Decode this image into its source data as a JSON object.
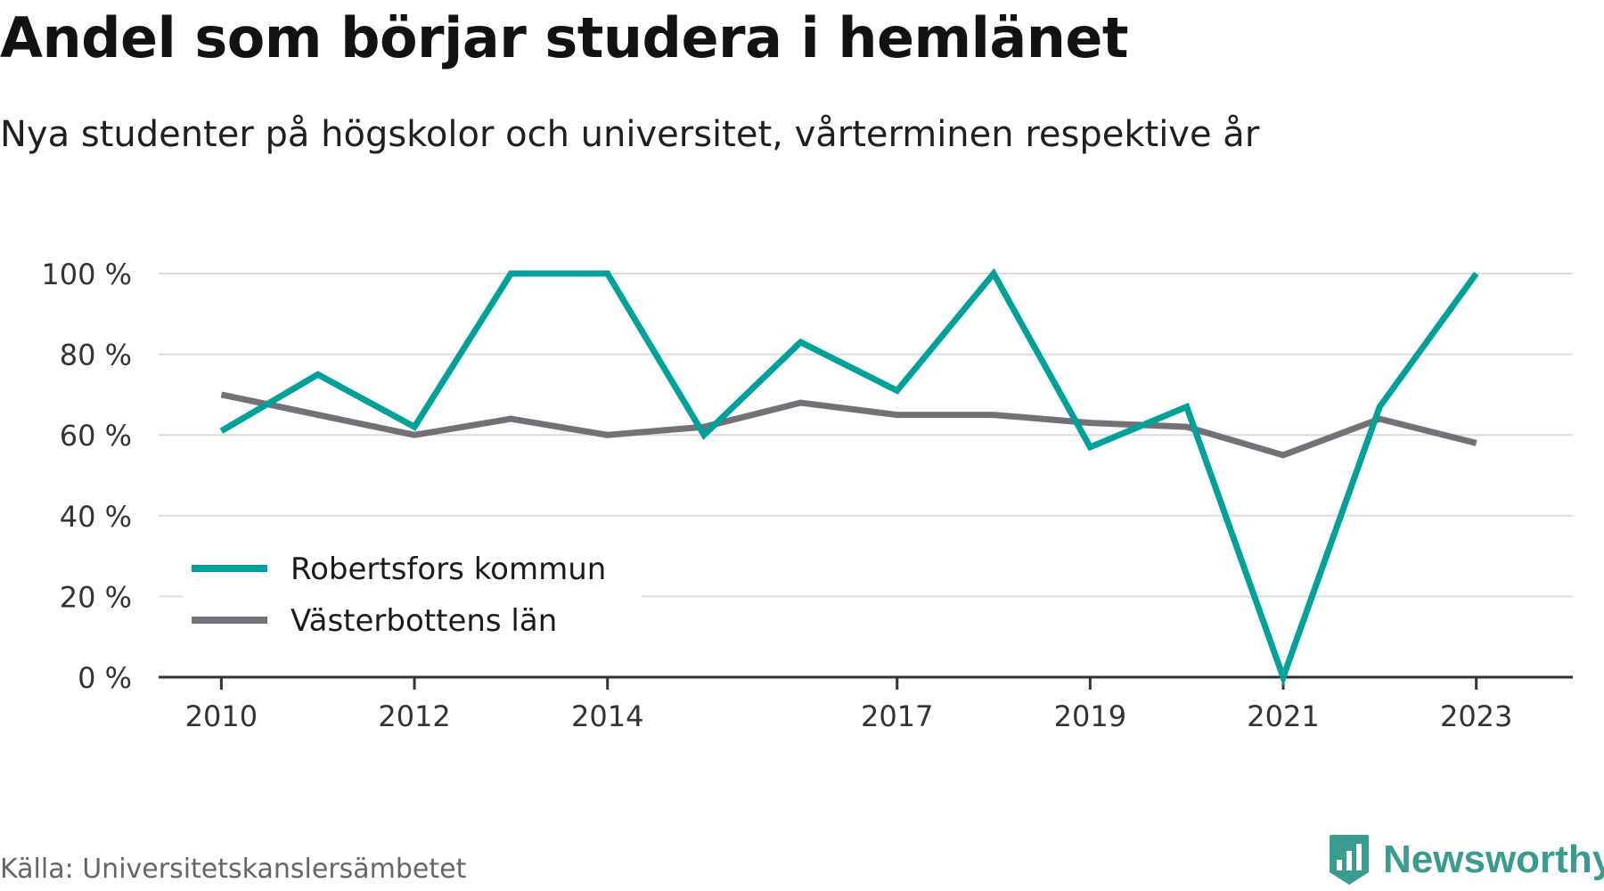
{
  "title": "Andel som börjar studera i hemlänet",
  "subtitle": "Nya studenter på högskolor och universitet, vårterminen respektive år",
  "source": "Källa: Universitetskanslersämbetet",
  "brand": {
    "name": "Newsworthy",
    "icon": "bar-chart-badge-icon",
    "color": "#3a9c90"
  },
  "chart_data": {
    "type": "line",
    "x": [
      2010,
      2011,
      2012,
      2013,
      2014,
      2015,
      2016,
      2017,
      2018,
      2019,
      2020,
      2021,
      2022,
      2023
    ],
    "x_tick_labels": [
      "2010",
      "2012",
      "2014",
      "2017",
      "2019",
      "2021",
      "2023"
    ],
    "y_tick_labels": [
      "0 %",
      "20 %",
      "40 %",
      "60 %",
      "80 %",
      "100 %"
    ],
    "y_ticks": [
      0,
      20,
      40,
      60,
      80,
      100
    ],
    "ylim": [
      0,
      100
    ],
    "grid": "horizontal",
    "legend_position": "bottom-left",
    "series": [
      {
        "name": "Robertsfors kommun",
        "color": "#00a19a",
        "values": [
          61,
          75,
          62,
          100,
          100,
          60,
          83,
          71,
          100,
          57,
          67,
          0,
          67,
          100
        ]
      },
      {
        "name": "Västerbottens län",
        "color": "#737177",
        "values": [
          70,
          65,
          60,
          64,
          60,
          62,
          68,
          65,
          65,
          63,
          62,
          55,
          64,
          58
        ]
      }
    ]
  }
}
